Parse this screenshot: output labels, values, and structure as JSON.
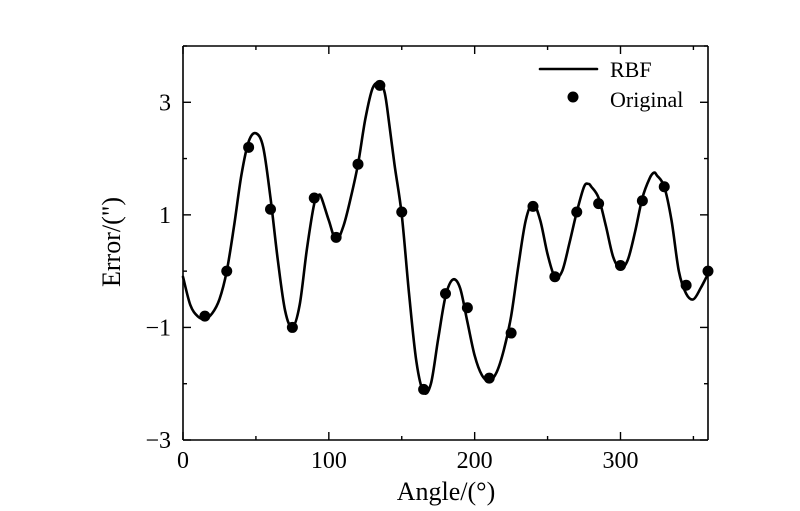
{
  "chart_data": {
    "type": "line",
    "xlabel": "Angle/(°)",
    "ylabel": "Error/(\")",
    "xlim": [
      0,
      360
    ],
    "ylim": [
      -3,
      4
    ],
    "xticks": [
      0,
      100,
      200,
      300
    ],
    "xtick_labels": [
      "0",
      "100",
      "200",
      "300"
    ],
    "yticks": [
      -3,
      -1,
      1,
      3
    ],
    "ytick_labels": [
      "−3",
      "−1",
      "1",
      "3"
    ],
    "grid": false,
    "legend_position": "top-right",
    "series": [
      {
        "name": "RBF",
        "style": "line",
        "color": "#000000",
        "x": [
          0,
          5,
          10,
          15,
          20,
          25,
          30,
          35,
          40,
          45,
          50,
          55,
          60,
          65,
          70,
          75,
          80,
          85,
          90,
          93,
          95,
          100,
          105,
          110,
          115,
          120,
          125,
          130,
          135,
          138,
          140,
          145,
          150,
          155,
          160,
          165,
          170,
          175,
          180,
          185,
          190,
          195,
          200,
          205,
          210,
          215,
          220,
          225,
          230,
          235,
          240,
          245,
          250,
          255,
          260,
          265,
          270,
          275,
          278,
          280,
          285,
          290,
          295,
          300,
          305,
          310,
          315,
          320,
          323,
          325,
          330,
          335,
          340,
          345,
          350,
          355,
          360
        ],
        "y": [
          -0.1,
          -0.6,
          -0.8,
          -0.85,
          -0.75,
          -0.5,
          0,
          0.8,
          1.7,
          2.3,
          2.45,
          2.2,
          1.3,
          0.2,
          -0.7,
          -1.0,
          -0.6,
          0.4,
          1.2,
          1.35,
          1.3,
          0.9,
          0.55,
          0.8,
          1.3,
          1.9,
          2.7,
          3.25,
          3.35,
          3.2,
          2.9,
          1.9,
          1.0,
          -0.4,
          -1.6,
          -2.15,
          -2.0,
          -1.2,
          -0.45,
          -0.15,
          -0.3,
          -0.9,
          -1.5,
          -1.85,
          -1.95,
          -1.8,
          -1.4,
          -0.8,
          0.1,
          0.9,
          1.2,
          0.9,
          0.3,
          -0.1,
          0,
          0.5,
          1.05,
          1.5,
          1.55,
          1.5,
          1.3,
          0.8,
          0.25,
          0.05,
          0.2,
          0.7,
          1.3,
          1.65,
          1.75,
          1.7,
          1.5,
          0.9,
          0,
          -0.4,
          -0.5,
          -0.3,
          -0.05
        ]
      },
      {
        "name": "Original",
        "style": "markers",
        "color": "#000000",
        "x": [
          15,
          30,
          45,
          60,
          75,
          90,
          105,
          120,
          135,
          150,
          165,
          180,
          195,
          210,
          225,
          240,
          255,
          270,
          285,
          300,
          315,
          330,
          345,
          360
        ],
        "y": [
          -0.8,
          0,
          2.2,
          1.1,
          -1.0,
          1.3,
          0.6,
          1.9,
          3.3,
          1.05,
          -2.1,
          -0.4,
          -0.65,
          -1.9,
          -1.1,
          1.15,
          -0.1,
          1.05,
          1.2,
          0.1,
          1.25,
          1.5,
          -0.25,
          0
        ]
      }
    ]
  }
}
